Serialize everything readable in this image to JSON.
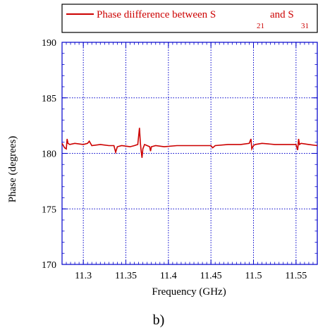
{
  "caption": "b)",
  "legend": {
    "main": "Phase diifference between S",
    "sub1": "21",
    "mid": "and S",
    "sub2": "31"
  },
  "colors": {
    "series": "#cc0000",
    "grid": "#0000cc",
    "axis": "#0000cc"
  },
  "chart_data": {
    "type": "line",
    "title": "",
    "xlabel": "Frequency (GHz)",
    "ylabel": "Phase (degrees)",
    "xlim": [
      11.275,
      11.575
    ],
    "ylim": [
      170,
      190
    ],
    "xticks": [
      11.3,
      11.35,
      11.4,
      11.45,
      11.5,
      11.55
    ],
    "xtick_labels": [
      "11.3",
      "11.35",
      "11.4",
      "11.45",
      "11.5",
      "11.55"
    ],
    "yticks": [
      170,
      175,
      180,
      185,
      190
    ],
    "ytick_labels": [
      "170",
      "175",
      "180",
      "185",
      "190"
    ],
    "grid": true,
    "legend_position": "top",
    "series": [
      {
        "name": "Phase diifference between S21 and S31",
        "x": [
          11.275,
          11.278,
          11.28,
          11.281,
          11.282,
          11.284,
          11.29,
          11.3,
          11.305,
          11.307,
          11.31,
          11.32,
          11.33,
          11.336,
          11.338,
          11.34,
          11.345,
          11.355,
          11.36,
          11.364,
          11.366,
          11.367,
          11.368,
          11.369,
          11.37,
          11.372,
          11.375,
          11.378,
          11.379,
          11.38,
          11.385,
          11.395,
          11.41,
          11.425,
          11.44,
          11.45,
          11.452,
          11.455,
          11.47,
          11.485,
          11.495,
          11.497,
          11.498,
          11.5,
          11.502,
          11.51,
          11.525,
          11.54,
          11.55,
          11.552,
          11.553,
          11.554,
          11.556,
          11.565,
          11.575
        ],
        "values": [
          180.9,
          180.5,
          180.4,
          181.3,
          180.9,
          180.8,
          180.9,
          180.8,
          180.9,
          181.1,
          180.7,
          180.8,
          180.7,
          180.7,
          180.1,
          180.6,
          180.7,
          180.6,
          180.7,
          180.8,
          182.3,
          181.0,
          180.2,
          179.6,
          180.4,
          180.8,
          180.7,
          180.6,
          180.2,
          180.6,
          180.7,
          180.6,
          180.7,
          180.7,
          180.7,
          180.7,
          180.5,
          180.7,
          180.8,
          180.8,
          180.9,
          181.3,
          180.4,
          180.7,
          180.8,
          180.9,
          180.8,
          180.8,
          180.8,
          180.3,
          181.3,
          180.8,
          180.9,
          180.8,
          180.7
        ]
      }
    ]
  }
}
